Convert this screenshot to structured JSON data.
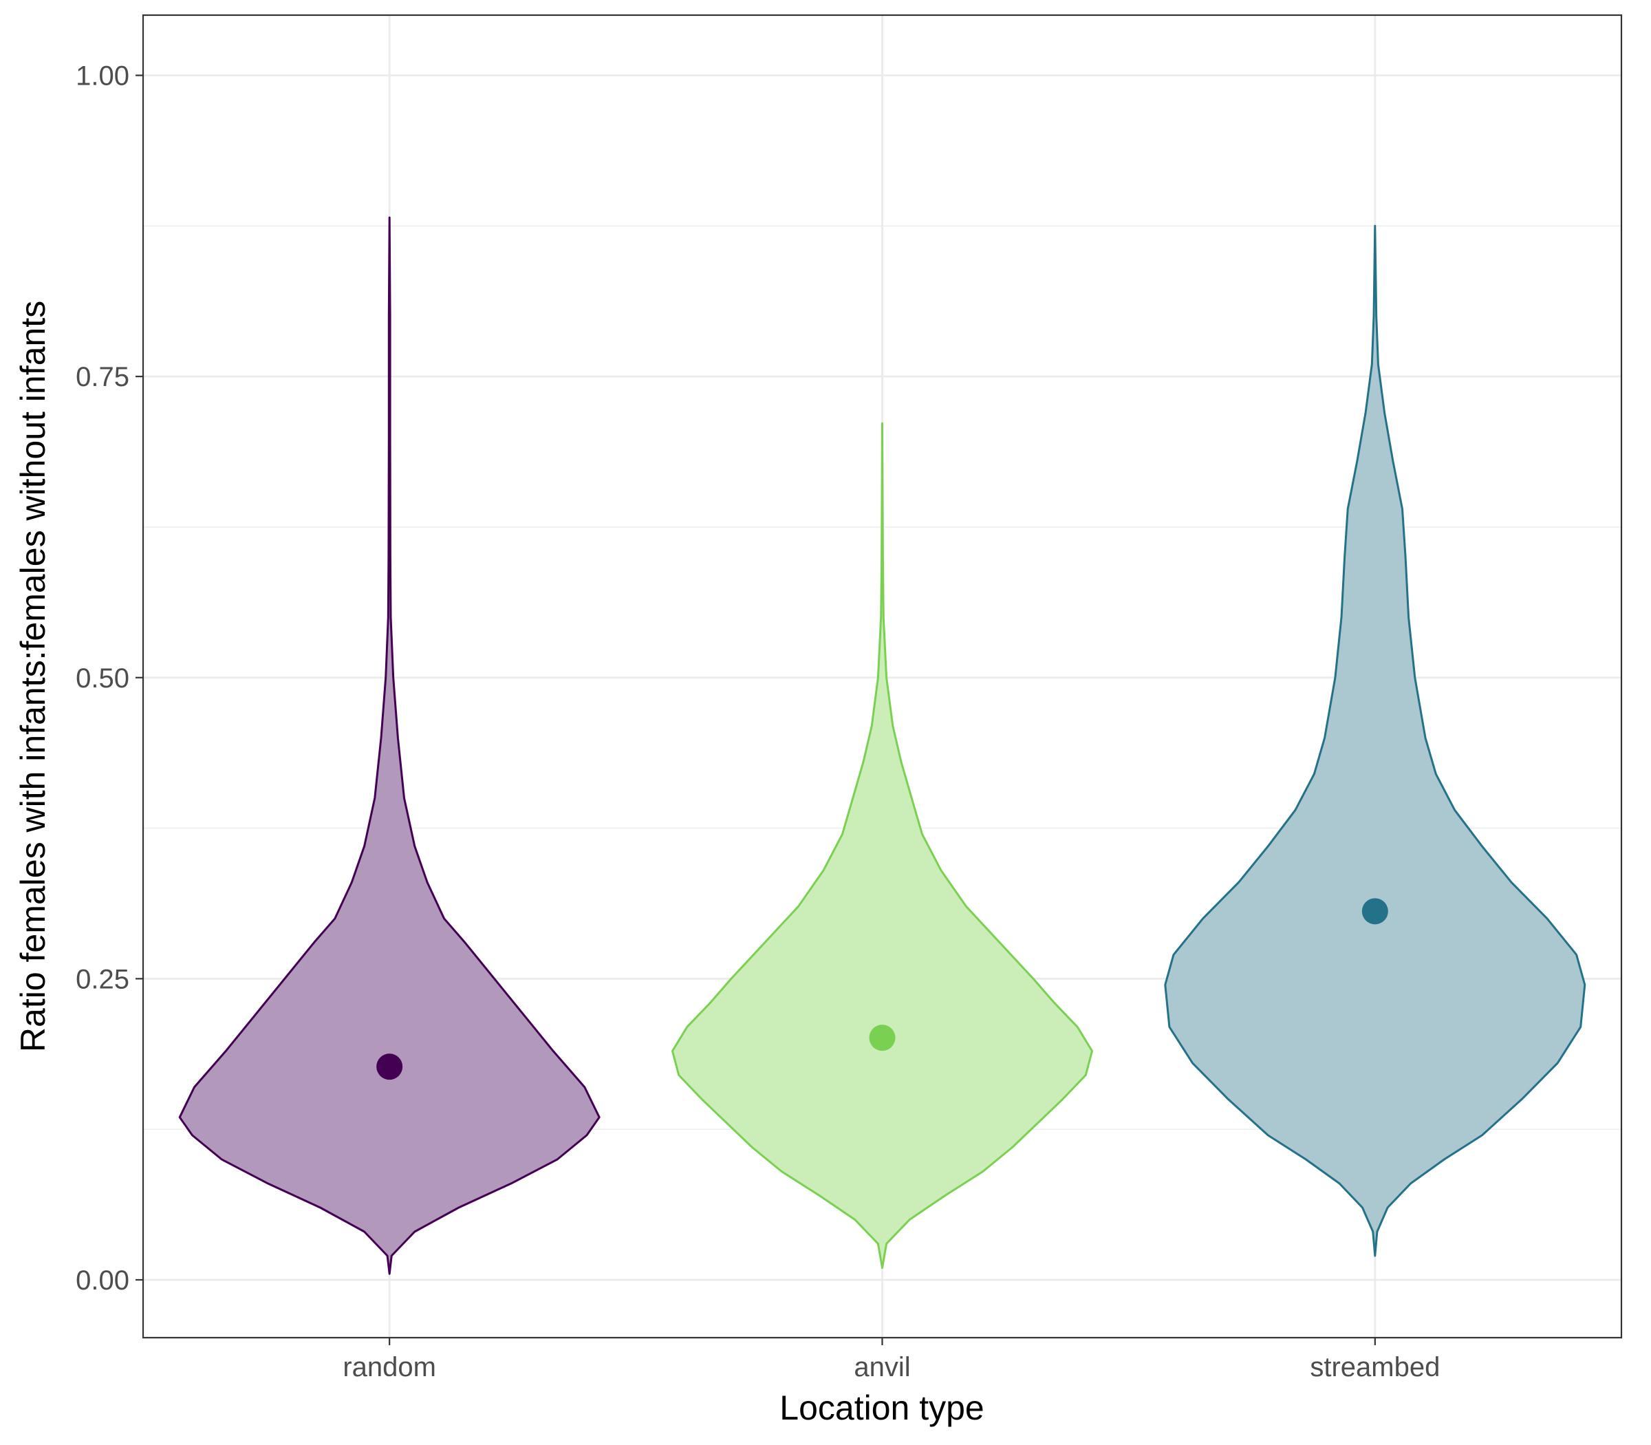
{
  "chart_data": {
    "type": "violin",
    "xlabel": "Location type",
    "ylabel": "Ratio females with infants:females without infants",
    "ylim": [
      -0.048,
      1.05
    ],
    "yticks": [
      0.0,
      0.25,
      0.5,
      0.75,
      1.0
    ],
    "ytick_labels": [
      "0.00",
      "0.25",
      "0.50",
      "0.75",
      "1.00"
    ],
    "categories": [
      "random",
      "anvil",
      "streambed"
    ],
    "grid": true,
    "legend": "none",
    "series": [
      {
        "category": "random",
        "color": "#440154",
        "fill": "#b298bb",
        "point": 0.177,
        "density": [
          [
            0.005,
            0
          ],
          [
            0.02,
            0.01
          ],
          [
            0.04,
            0.12
          ],
          [
            0.06,
            0.33
          ],
          [
            0.08,
            0.58
          ],
          [
            0.1,
            0.8
          ],
          [
            0.12,
            0.94
          ],
          [
            0.135,
            1.0
          ],
          [
            0.16,
            0.93
          ],
          [
            0.19,
            0.78
          ],
          [
            0.22,
            0.64
          ],
          [
            0.25,
            0.5
          ],
          [
            0.28,
            0.36
          ],
          [
            0.3,
            0.26
          ],
          [
            0.33,
            0.18
          ],
          [
            0.36,
            0.12
          ],
          [
            0.4,
            0.07
          ],
          [
            0.45,
            0.04
          ],
          [
            0.5,
            0.018
          ],
          [
            0.55,
            0.006
          ],
          [
            0.6,
            0.004
          ],
          [
            0.7,
            0.003
          ],
          [
            0.8,
            0.003
          ],
          [
            0.882,
            0
          ]
        ]
      },
      {
        "category": "anvil",
        "color": "#7ad151",
        "fill": "#cbeeb9",
        "point": 0.201,
        "density": [
          [
            0.01,
            0
          ],
          [
            0.03,
            0.02
          ],
          [
            0.05,
            0.13
          ],
          [
            0.07,
            0.3
          ],
          [
            0.09,
            0.48
          ],
          [
            0.11,
            0.62
          ],
          [
            0.13,
            0.74
          ],
          [
            0.15,
            0.86
          ],
          [
            0.17,
            0.97
          ],
          [
            0.19,
            1.0
          ],
          [
            0.21,
            0.93
          ],
          [
            0.23,
            0.82
          ],
          [
            0.25,
            0.72
          ],
          [
            0.28,
            0.56
          ],
          [
            0.31,
            0.4
          ],
          [
            0.34,
            0.28
          ],
          [
            0.37,
            0.19
          ],
          [
            0.4,
            0.14
          ],
          [
            0.43,
            0.09
          ],
          [
            0.46,
            0.05
          ],
          [
            0.5,
            0.02
          ],
          [
            0.55,
            0.006
          ],
          [
            0.6,
            0.003
          ],
          [
            0.711,
            0
          ]
        ]
      },
      {
        "category": "streambed",
        "color": "#23728a",
        "fill": "#abc7d0",
        "point": 0.306,
        "density": [
          [
            0.02,
            0
          ],
          [
            0.04,
            0.01
          ],
          [
            0.06,
            0.06
          ],
          [
            0.08,
            0.17
          ],
          [
            0.1,
            0.33
          ],
          [
            0.12,
            0.51
          ],
          [
            0.15,
            0.7
          ],
          [
            0.18,
            0.87
          ],
          [
            0.21,
            0.98
          ],
          [
            0.245,
            1.0
          ],
          [
            0.27,
            0.96
          ],
          [
            0.3,
            0.82
          ],
          [
            0.33,
            0.65
          ],
          [
            0.36,
            0.51
          ],
          [
            0.39,
            0.38
          ],
          [
            0.42,
            0.29
          ],
          [
            0.45,
            0.24
          ],
          [
            0.5,
            0.19
          ],
          [
            0.55,
            0.16
          ],
          [
            0.6,
            0.145
          ],
          [
            0.64,
            0.13
          ],
          [
            0.68,
            0.085
          ],
          [
            0.72,
            0.045
          ],
          [
            0.76,
            0.015
          ],
          [
            0.8,
            0.006
          ],
          [
            0.875,
            0
          ]
        ]
      }
    ]
  }
}
